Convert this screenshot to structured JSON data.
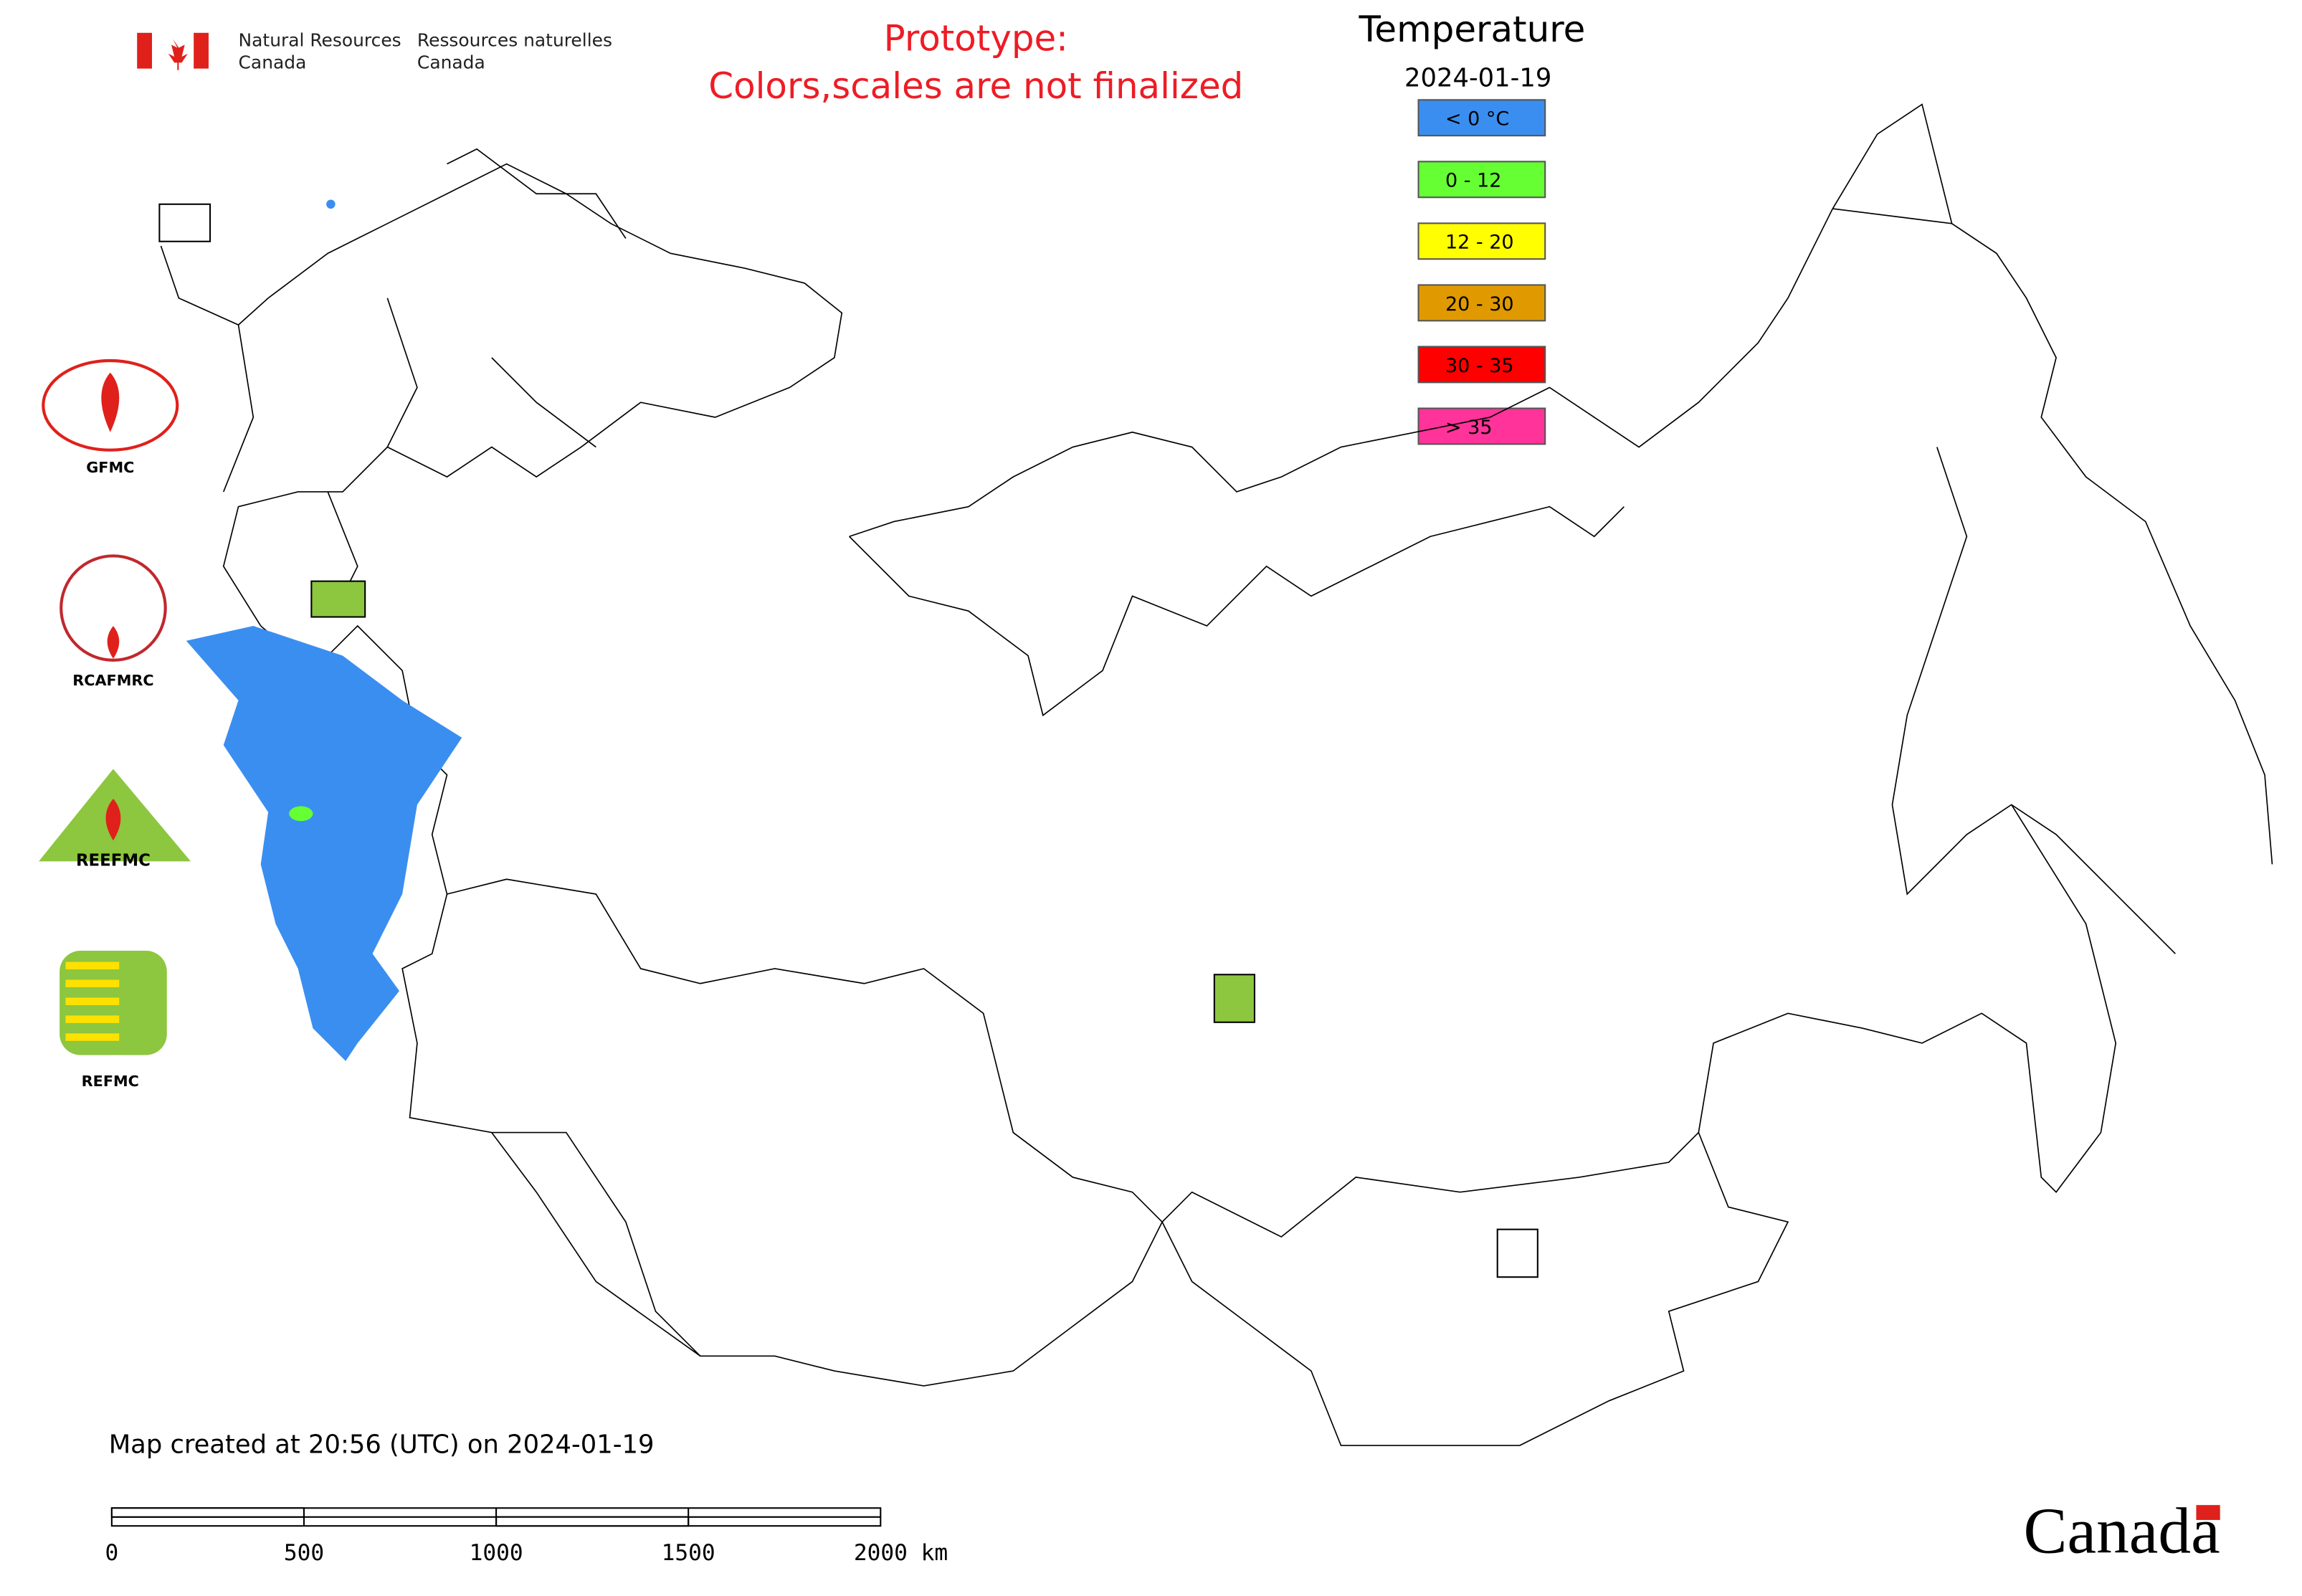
{
  "header": {
    "org_en_1": "Natural Resources",
    "org_en_2": "Canada",
    "org_fr_1": "Ressources naturelles",
    "org_fr_2": "Canada",
    "notice_1": "Prototype:",
    "notice_2": "Colors,scales are not finalized"
  },
  "legend": {
    "title": "Temperature",
    "date": "2024-01-19",
    "items": [
      {
        "label": "< 0 °C",
        "color": "#3a8ef0"
      },
      {
        "label": "0 - 12",
        "color": "#66ff33"
      },
      {
        "label": "12 - 20",
        "color": "#ffff00"
      },
      {
        "label": "20 - 30",
        "color": "#e09a00"
      },
      {
        "label": "30 - 35",
        "color": "#ff0000"
      },
      {
        "label": "> 35",
        "color": "#ff3399"
      }
    ]
  },
  "logos": [
    "GFMC",
    "RCAFMRC",
    "REEFMC",
    "REFMC"
  ],
  "footer": {
    "created": "Map created at 20:56 (UTC) on 2024-01-19",
    "scale": [
      "0",
      "500",
      "1000",
      "1500",
      "2000 km"
    ],
    "wordmark": "Canada"
  }
}
